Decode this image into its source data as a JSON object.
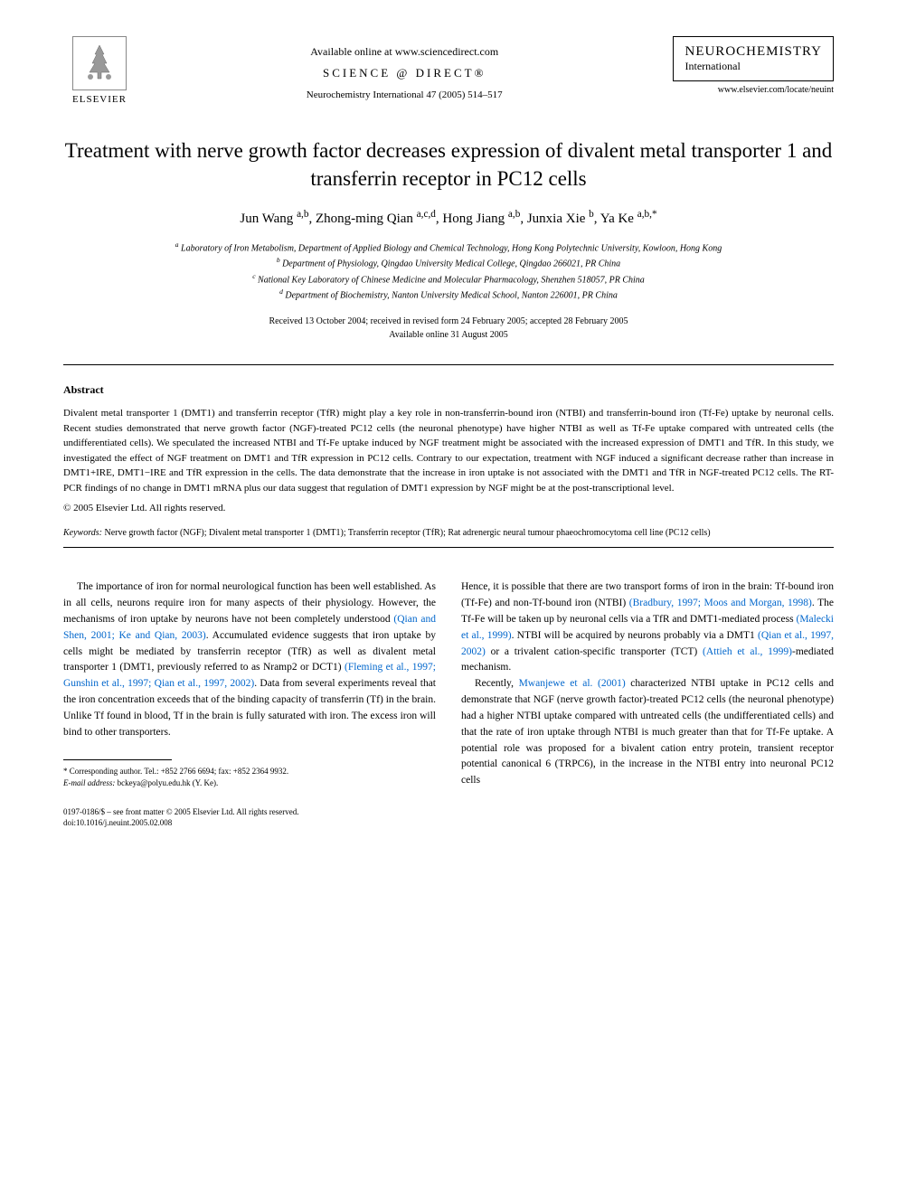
{
  "header": {
    "publisher_name": "ELSEVIER",
    "available_online": "Available online at www.sciencedirect.com",
    "science_direct": "SCIENCE @ DIRECT®",
    "journal_ref": "Neurochemistry International 47 (2005) 514–517",
    "journal_title": "NEUROCHEMISTRY",
    "journal_subtitle": "International",
    "journal_url": "www.elsevier.com/locate/neuint"
  },
  "title": "Treatment with nerve growth factor decreases expression of divalent metal transporter 1 and transferrin receptor in PC12 cells",
  "authors_html": "Jun Wang <sup>a,b</sup>, Zhong-ming Qian <sup>a,c,d</sup>, Hong Jiang <sup>a,b</sup>, Junxia Xie <sup>b</sup>, Ya Ke <sup>a,b,*</sup>",
  "affiliations": {
    "a": "Laboratory of Iron Metabolism, Department of Applied Biology and Chemical Technology, Hong Kong Polytechnic University, Kowloon, Hong Kong",
    "b": "Department of Physiology, Qingdao University Medical College, Qingdao 266021, PR China",
    "c": "National Key Laboratory of Chinese Medicine and Molecular Pharmacology, Shenzhen 518057, PR China",
    "d": "Department of Biochemistry, Nanton University Medical School, Nanton 226001, PR China"
  },
  "dates": {
    "received": "Received 13 October 2004; received in revised form 24 February 2005; accepted 28 February 2005",
    "online": "Available online 31 August 2005"
  },
  "abstract": {
    "heading": "Abstract",
    "text": "Divalent metal transporter 1 (DMT1) and transferrin receptor (TfR) might play a key role in non-transferrin-bound iron (NTBI) and transferrin-bound iron (Tf-Fe) uptake by neuronal cells. Recent studies demonstrated that nerve growth factor (NGF)-treated PC12 cells (the neuronal phenotype) have higher NTBI as well as Tf-Fe uptake compared with untreated cells (the undifferentiated cells). We speculated the increased NTBI and Tf-Fe uptake induced by NGF treatment might be associated with the increased expression of DMT1 and TfR. In this study, we investigated the effect of NGF treatment on DMT1 and TfR expression in PC12 cells. Contrary to our expectation, treatment with NGF induced a significant decrease rather than increase in DMT1+IRE, DMT1−IRE and TfR expression in the cells. The data demonstrate that the increase in iron uptake is not associated with the DMT1 and TfR in NGF-treated PC12 cells. The RT-PCR findings of no change in DMT1 mRNA plus our data suggest that regulation of DMT1 expression by NGF might be at the post-transcriptional level.",
    "copyright": "© 2005 Elsevier Ltd. All rights reserved."
  },
  "keywords": {
    "label": "Keywords:",
    "text": "Nerve growth factor (NGF); Divalent metal transporter 1 (DMT1); Transferrin receptor (TfR); Rat adrenergic neural tumour phaeochromocytoma cell line (PC12 cells)"
  },
  "body": {
    "col1_p1_a": "The importance of iron for normal neurological function has been well established. As in all cells, neurons require iron for many aspects of their physiology. However, the mechanisms of iron uptake by neurons have not been completely understood ",
    "col1_p1_link1": "(Qian and Shen, 2001; Ke and Qian, 2003)",
    "col1_p1_b": ". Accumulated evidence suggests that iron uptake by cells might be mediated by transferrin receptor (TfR) as well as divalent metal transporter 1 (DMT1, previously referred to as Nramp2 or DCT1) ",
    "col1_p1_link2": "(Fleming et al., 1997; Gunshin et al., 1997; Qian et al., 1997, 2002)",
    "col1_p1_c": ". Data from several experiments reveal that the iron concentration exceeds that of the binding capacity of transferrin (Tf) in the brain. Unlike Tf found in blood, Tf in the brain is fully saturated with iron. The excess iron will bind to other transporters.",
    "col2_p1_a": "Hence, it is possible that there are two transport forms of iron in the brain: Tf-bound iron (Tf-Fe) and non-Tf-bound iron (NTBI) ",
    "col2_p1_link1": "(Bradbury, 1997; Moos and Morgan, 1998)",
    "col2_p1_b": ". The Tf-Fe will be taken up by neuronal cells via a TfR and DMT1-mediated process ",
    "col2_p1_link2": "(Malecki et al., 1999)",
    "col2_p1_c": ". NTBI will be acquired by neurons probably via a DMT1 ",
    "col2_p1_link3": "(Qian et al., 1997, 2002)",
    "col2_p1_d": " or a trivalent cation-specific transporter (TCT) ",
    "col2_p1_link4": "(Attieh et al., 1999)",
    "col2_p1_e": "-mediated mechanism.",
    "col2_p2_a": "Recently, ",
    "col2_p2_link1": "Mwanjewe et al. (2001)",
    "col2_p2_b": " characterized NTBI uptake in PC12 cells and demonstrate that NGF (nerve growth factor)-treated PC12 cells (the neuronal phenotype) had a higher NTBI uptake compared with untreated cells (the undifferentiated cells) and that the rate of iron uptake through NTBI is much greater than that for Tf-Fe uptake. A potential role was proposed for a bivalent cation entry protein, transient receptor potential canonical 6 (TRPC6), in the increase in the NTBI entry into neuronal PC12 cells"
  },
  "footnote": {
    "corr": "* Corresponding author. Tel.: +852 2766 6694; fax: +852 2364 9932.",
    "email_label": "E-mail address:",
    "email": "bckeya@polyu.edu.hk (Y. Ke)."
  },
  "footer": {
    "line1": "0197-0186/$ – see front matter © 2005 Elsevier Ltd. All rights reserved.",
    "line2": "doi:10.1016/j.neuint.2005.02.008"
  },
  "colors": {
    "link": "#0066cc",
    "text": "#000000",
    "background": "#ffffff"
  }
}
